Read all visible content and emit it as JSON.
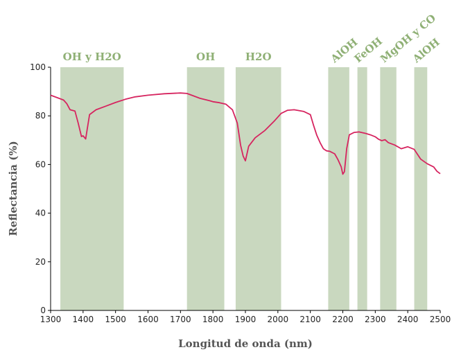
{
  "chart_data": {
    "type": "line",
    "title": "",
    "xlabel": "Longitud de onda (nm)",
    "ylabel": "Reflectancia (%)",
    "xlim": [
      1300,
      2500
    ],
    "ylim": [
      0,
      100
    ],
    "xticks": [
      1300,
      1400,
      1500,
      1600,
      1700,
      1800,
      1900,
      2000,
      2100,
      2200,
      2300,
      2400,
      2500
    ],
    "yticks": [
      0,
      20,
      40,
      60,
      80,
      100
    ],
    "grid": false,
    "line_color": "#d6245f",
    "band_color": "#c9d8bf",
    "label_color": "#8fb075",
    "bands": [
      {
        "start": 1330,
        "end": 1525,
        "label": "OH y H2O",
        "angle": 0
      },
      {
        "start": 1720,
        "end": 1835,
        "label": "OH",
        "angle": 0
      },
      {
        "start": 1870,
        "end": 2010,
        "label": "H2O",
        "angle": 0
      },
      {
        "start": 2155,
        "end": 2220,
        "label": "AlOH",
        "angle": -40
      },
      {
        "start": 2245,
        "end": 2275,
        "label": "FeOH",
        "angle": -40
      },
      {
        "start": 2315,
        "end": 2365,
        "label": "MgOH y CO",
        "angle": -40
      },
      {
        "start": 2420,
        "end": 2460,
        "label": "AlOH",
        "angle": -40
      }
    ],
    "series": [
      {
        "x": [
          1300,
          1320,
          1340,
          1350,
          1360,
          1375,
          1385,
          1395,
          1400,
          1408,
          1412,
          1420,
          1440,
          1470,
          1500,
          1530,
          1560,
          1600,
          1650,
          1700,
          1720,
          1740,
          1760,
          1790,
          1800,
          1820,
          1840,
          1860,
          1875,
          1885,
          1893,
          1900,
          1910,
          1930,
          1960,
          1990,
          2010,
          2030,
          2050,
          2080,
          2100,
          2110,
          2120,
          2130,
          2140,
          2150,
          2160,
          2175,
          2185,
          2195,
          2200,
          2205,
          2212,
          2220,
          2235,
          2250,
          2270,
          2285,
          2300,
          2310,
          2320,
          2330,
          2340,
          2360,
          2380,
          2400,
          2420,
          2440,
          2460,
          2480,
          2490,
          2500
        ],
        "y": [
          88.5,
          87.5,
          86.5,
          85,
          82.5,
          82,
          77,
          71.5,
          71.8,
          70.5,
          74,
          80.5,
          82.5,
          84,
          85.5,
          86.8,
          87.8,
          88.5,
          89.1,
          89.4,
          89.2,
          88.2,
          87.2,
          86.2,
          85.8,
          85.4,
          84.8,
          82.5,
          77,
          68,
          63.5,
          61.5,
          67.5,
          71,
          74,
          78,
          81,
          82.3,
          82.5,
          81.8,
          80.5,
          76,
          72,
          69,
          66.5,
          65.6,
          65.4,
          64.4,
          62,
          59,
          56,
          57,
          66.5,
          72.2,
          73.2,
          73.4,
          72.8,
          72.2,
          71.4,
          70.4,
          69.8,
          70.2,
          69,
          68,
          66.5,
          67.3,
          66.2,
          62.2,
          60.3,
          59,
          57.2,
          56.2
        ]
      }
    ]
  }
}
